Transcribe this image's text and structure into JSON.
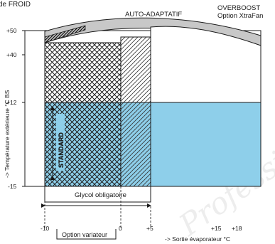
{
  "header": {
    "title_partial": "de FROID"
  },
  "labels": {
    "auto_adaptatif": "AUTO-ADAPTATIF",
    "overboost": "OVERBOOST",
    "option_xtrafan": "Option XtraFan",
    "standard": "STANDARD",
    "glycol": "Glycol obligatoire",
    "option_variateur": "Option variateur",
    "ylabel": "-> Température extérieure °C BS",
    "xlabel": "-> Sortie évaporateur °C",
    "watermark": "Profession"
  },
  "colors": {
    "cool_fill": "#8ecfea",
    "band_grey": "#c8c8c8",
    "line": "#1a1a1a"
  },
  "chart_data": {
    "type": "area",
    "x_ticks": [
      "-10",
      "0",
      "+5",
      "+15",
      "+18"
    ],
    "y_ticks": [
      "+50",
      "+40",
      "+12",
      "-15"
    ],
    "xlim": [
      -10,
      18
    ],
    "ylim": [
      -15,
      50
    ],
    "regions": [
      {
        "name": "STANDARD",
        "x": [
          -10,
          0
        ],
        "y": [
          -15,
          40
        ]
      },
      {
        "name": "AUTO-ADAPTATIF",
        "x": [
          0,
          5
        ],
        "y": [
          -15,
          50
        ]
      },
      {
        "name": "Glycol obligatoire",
        "x": [
          -10,
          5
        ],
        "y": [
          -15,
          12
        ]
      },
      {
        "name": "Option variateur",
        "x": [
          -10,
          0
        ]
      },
      {
        "name": "OVERBOOST Option XtraFan",
        "x": [
          -10,
          18
        ],
        "y": [
          40,
          50
        ]
      }
    ]
  }
}
